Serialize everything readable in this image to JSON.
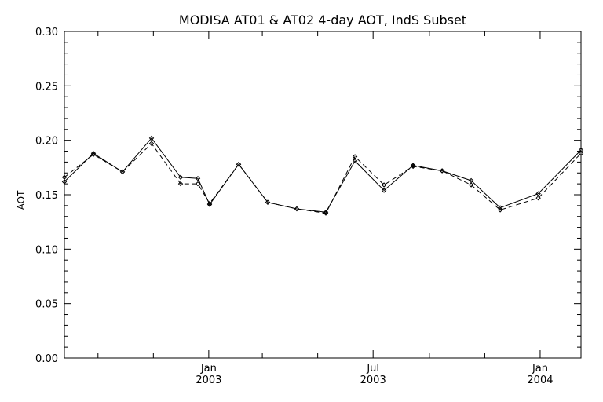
{
  "chart_data": {
    "type": "line",
    "title": "MODISA AT01 & AT02 4-day AOT, IndS Subset",
    "xlabel": "",
    "ylabel": "AOT",
    "xlim": [
      "2002-07-26",
      "2004-02-15"
    ],
    "ylim": [
      0.0,
      0.3
    ],
    "yticks": [
      0.0,
      0.05,
      0.1,
      0.15,
      0.2,
      0.25,
      0.3
    ],
    "ytick_labels": [
      "0.00",
      "0.05",
      "0.10",
      "0.15",
      "0.20",
      "0.25",
      "0.30"
    ],
    "xticks_major": [
      {
        "date": "2003-01-01",
        "label": "Jan",
        "year": "2003"
      },
      {
        "date": "2003-07-01",
        "label": "Jul",
        "year": "2003"
      },
      {
        "date": "2004-01-01",
        "label": "Jan",
        "year": "2004"
      }
    ],
    "xticks_minor": [
      "2002-09-01",
      "2002-11-01",
      "2003-03-01",
      "2003-05-01",
      "2003-09-01",
      "2003-11-01"
    ],
    "grid": false,
    "legend": "none",
    "series": [
      {
        "style": "solid",
        "color": "#000000",
        "x": [
          "2002-07-26",
          "2002-08-27",
          "2002-09-28",
          "2002-10-30",
          "2002-12-01",
          "2002-12-20",
          "2003-01-02",
          "2003-02-03",
          "2003-03-07",
          "2003-04-08",
          "2003-05-10",
          "2003-06-11",
          "2003-07-13",
          "2003-08-14",
          "2003-09-15",
          "2003-10-17",
          "2003-11-18",
          "2003-12-30",
          "2004-02-15"
        ],
        "values": [
          0.162,
          0.188,
          0.171,
          0.202,
          0.166,
          0.165,
          0.141,
          0.178,
          0.143,
          0.137,
          0.134,
          0.181,
          0.154,
          0.177,
          0.172,
          0.163,
          0.138,
          0.151,
          0.191
        ]
      },
      {
        "style": "dashed",
        "color": "#000000",
        "x": [
          "2002-07-26",
          "2002-08-27",
          "2002-09-28",
          "2002-10-30",
          "2002-12-01",
          "2002-12-20",
          "2003-01-02",
          "2003-02-03",
          "2003-03-07",
          "2003-04-08",
          "2003-05-10",
          "2003-06-11",
          "2003-07-13",
          "2003-08-14",
          "2003-09-15",
          "2003-10-17",
          "2003-11-18",
          "2003-12-30",
          "2004-02-15"
        ],
        "values": [
          0.166,
          0.187,
          0.171,
          0.197,
          0.16,
          0.16,
          0.142,
          0.178,
          0.143,
          0.137,
          0.133,
          0.185,
          0.159,
          0.176,
          0.172,
          0.159,
          0.136,
          0.147,
          0.188
        ]
      }
    ]
  }
}
